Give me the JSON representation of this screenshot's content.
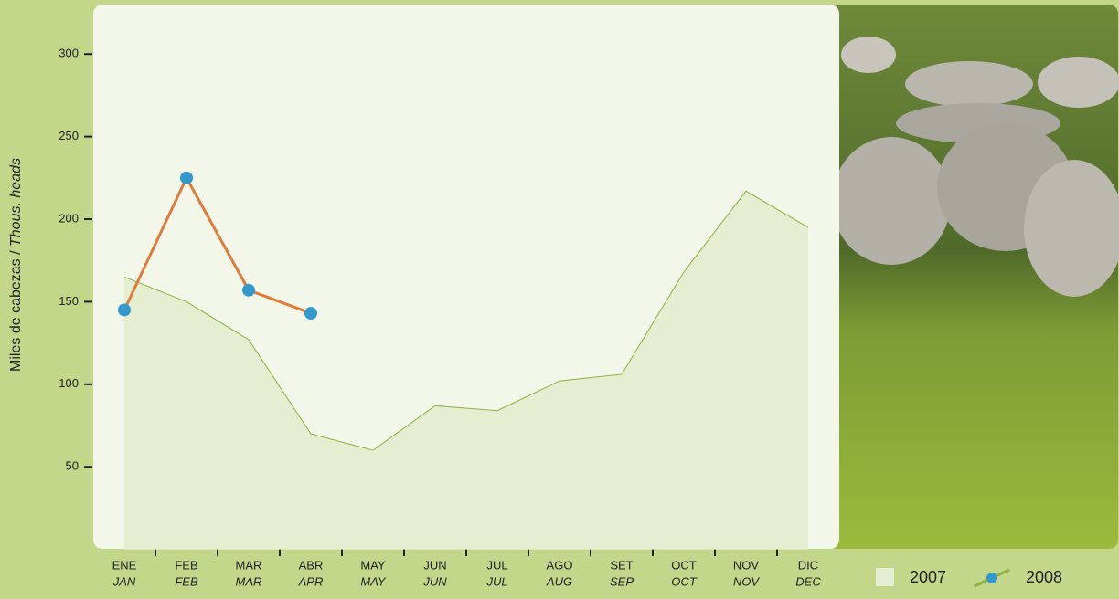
{
  "chart_data": {
    "type": "line",
    "y_label": "Miles de cabezas /",
    "y_label_en": "Thous. heads",
    "categories": [
      "ENE",
      "FEB",
      "MAR",
      "ABR",
      "MAY",
      "JUN",
      "JUL",
      "AGO",
      "SET",
      "OCT",
      "NOV",
      "DIC"
    ],
    "categories_en": [
      "JAN",
      "FEB",
      "MAR",
      "APR",
      "MAY",
      "JUN",
      "JUL",
      "AUG",
      "SEP",
      "OCT",
      "NOV",
      "DEC"
    ],
    "series": [
      {
        "name": "2007",
        "kind": "area",
        "color": "#e6eed1",
        "line_color": "#8db13f",
        "values": [
          165,
          150,
          127,
          70,
          60,
          87,
          84,
          102,
          106,
          168,
          217,
          195
        ]
      },
      {
        "name": "2008",
        "kind": "line",
        "color": "#e07b39",
        "marker_color": "#3399cc",
        "values": [
          145,
          225,
          157,
          143,
          null,
          null,
          null,
          null,
          null,
          null,
          null,
          null
        ]
      }
    ],
    "ylim": [
      0,
      330
    ],
    "yticks": [
      50,
      100,
      150,
      200,
      250,
      300
    ],
    "grid": false
  }
}
